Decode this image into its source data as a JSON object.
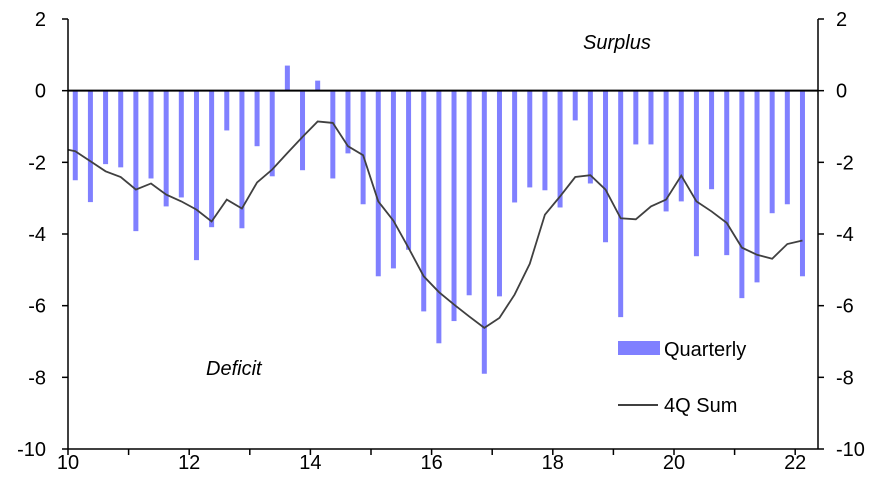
{
  "chart_data": {
    "type": "bar+line",
    "title": "",
    "xlabel": "",
    "ylabel": "",
    "xlim": [
      10,
      22.4
    ],
    "ylim": [
      -10,
      2
    ],
    "x_ticks": [
      "10",
      "12",
      "14",
      "16",
      "18",
      "20",
      "22"
    ],
    "x_tick_values": [
      10,
      12,
      14,
      16,
      18,
      20,
      22
    ],
    "y_ticks": [
      "2",
      "0",
      "-2",
      "-4",
      "-6",
      "-8",
      "-10"
    ],
    "y_tick_values": [
      2,
      0,
      -2,
      -4,
      -6,
      -8,
      -10
    ],
    "annotations": {
      "surplus": "Surplus",
      "deficit": "Deficit"
    },
    "legend": {
      "placement": "bottom-right",
      "quarterly": "Quarterly",
      "sum": "4Q Sum"
    },
    "colors": {
      "bars": "#8080FF",
      "line": "#404040",
      "axis": "#000000"
    },
    "bars": {
      "name": "Quarterly",
      "x_start": 10.12,
      "x_step": 0.25,
      "values": [
        -2.5,
        -3.11,
        -2.05,
        -2.14,
        -3.92,
        -2.45,
        -3.23,
        -2.98,
        -4.73,
        -3.81,
        -1.11,
        -3.84,
        -1.55,
        -2.39,
        0.7,
        -2.22,
        0.28,
        -2.45,
        -1.75,
        -3.17,
        -5.18,
        -4.96,
        -4.44,
        -6.16,
        -7.05,
        -6.43,
        -5.71,
        -7.9,
        -5.74,
        -3.12,
        -2.7,
        -2.78,
        -3.26,
        -0.83,
        -2.59,
        -4.23,
        -6.32,
        -1.5,
        -1.5,
        -3.37,
        -3.09,
        -4.62,
        -2.75,
        -4.59,
        -5.79,
        -5.35,
        -3.42,
        -3.17,
        -5.18
      ]
    },
    "line": {
      "name": "4Q Sum",
      "start": {
        "x": 10.0,
        "y": -1.65
      },
      "x_start": 10.12,
      "x_step": 0.25,
      "values": [
        -1.69,
        -1.97,
        -2.25,
        -2.41,
        -2.76,
        -2.59,
        -2.9,
        -3.09,
        -3.32,
        -3.65,
        -3.04,
        -3.29,
        -2.56,
        -2.2,
        -1.74,
        -1.29,
        -0.86,
        -0.9,
        -1.55,
        -1.8,
        -3.09,
        -3.63,
        -4.39,
        -5.18,
        -5.62,
        -5.97,
        -6.3,
        -6.62,
        -6.34,
        -5.69,
        -4.83,
        -3.46,
        -2.95,
        -2.41,
        -2.36,
        -2.76,
        -3.56,
        -3.59,
        -3.23,
        -3.04,
        -2.37,
        -3.09,
        -3.37,
        -3.69,
        -4.38,
        -4.58,
        -4.69,
        -4.28,
        -4.18
      ]
    }
  }
}
